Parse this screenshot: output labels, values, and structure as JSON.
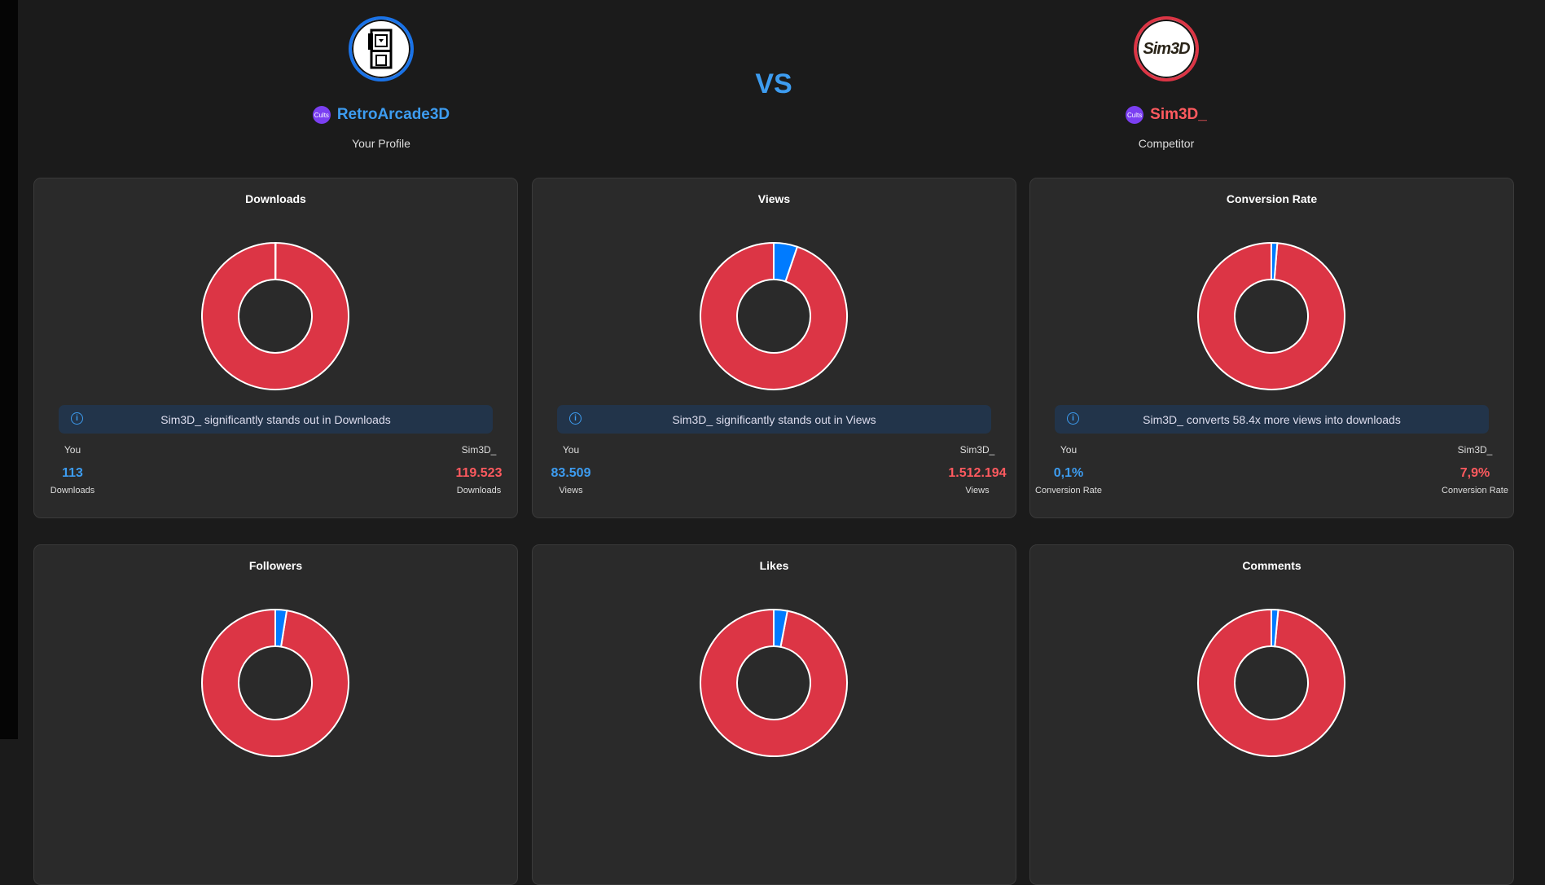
{
  "header": {
    "you": {
      "name": "RetroArcade3D",
      "subtitle": "Your Profile",
      "badge": "Cults",
      "avatar_icon": "arcade-cabinet-icon",
      "color": "#3d9cf0",
      "ring": "#1a73e8"
    },
    "vs": "VS",
    "competitor": {
      "name": "Sim3D_",
      "subtitle": "Competitor",
      "badge": "Cults",
      "avatar_logo": "Sim3D",
      "color": "#ff5a5f",
      "ring": "#dc3545"
    }
  },
  "colors": {
    "you": "#007bff",
    "competitor": "#dc3545"
  },
  "chart_data": [
    {
      "type": "pie",
      "title": "Downloads",
      "you_share": 0.0009,
      "info": "Sim3D_ significantly stands out in Downloads",
      "you_label": "You",
      "you_value": "113",
      "comp_label": "Sim3D_",
      "comp_value": "119.523",
      "unit": "Downloads"
    },
    {
      "type": "pie",
      "title": "Views",
      "you_share": 0.052,
      "info": "Sim3D_ significantly stands out in Views",
      "you_label": "You",
      "you_value": "83.509",
      "comp_label": "Sim3D_",
      "comp_value": "1.512.194",
      "unit": "Views"
    },
    {
      "type": "pie",
      "title": "Conversion Rate",
      "you_share": 0.013,
      "info": "Sim3D_ converts 58.4x more views into downloads",
      "you_label": "You",
      "you_value": "0,1%",
      "comp_label": "Sim3D_",
      "comp_value": "7,9%",
      "unit": "Conversion Rate"
    },
    {
      "type": "pie",
      "title": "Followers",
      "you_share": 0.025
    },
    {
      "type": "pie",
      "title": "Likes",
      "you_share": 0.03
    },
    {
      "type": "pie",
      "title": "Comments",
      "you_share": 0.015
    }
  ]
}
